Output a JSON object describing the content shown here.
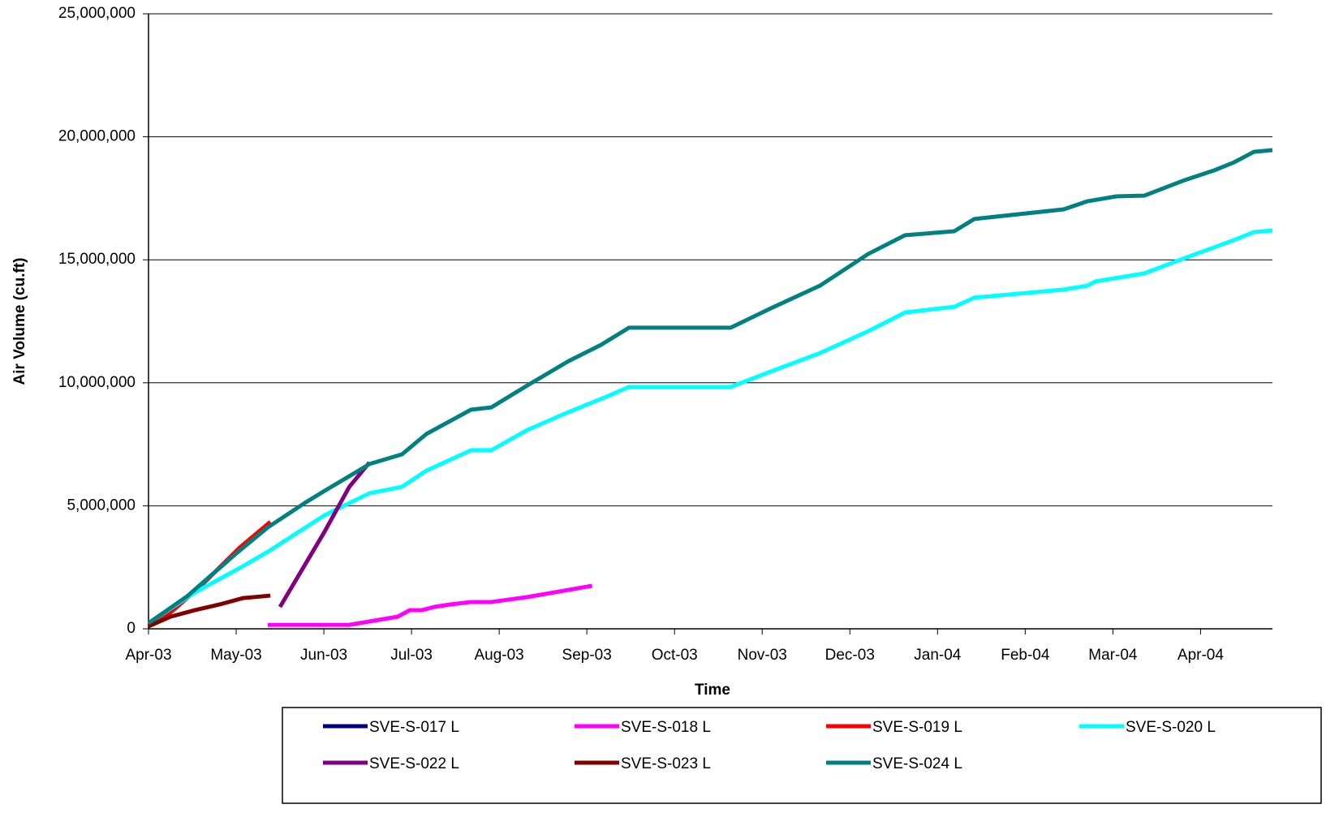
{
  "chart_data": {
    "type": "line",
    "y_label": "Air Volume (cu.ft)",
    "x_label": "Time",
    "xlim": [
      0,
      12.82
    ],
    "xticks": [
      {
        "value": 0,
        "label": "Apr-03"
      },
      {
        "value": 1,
        "label": "May-03"
      },
      {
        "value": 2,
        "label": "Jun-03"
      },
      {
        "value": 3,
        "label": "Jul-03"
      },
      {
        "value": 4,
        "label": "Aug-03"
      },
      {
        "value": 5,
        "label": "Sep-03"
      },
      {
        "value": 6,
        "label": "Oct-03"
      },
      {
        "value": 7,
        "label": "Nov-03"
      },
      {
        "value": 8,
        "label": "Dec-03"
      },
      {
        "value": 9,
        "label": "Jan-04"
      },
      {
        "value": 10,
        "label": "Feb-04"
      },
      {
        "value": 11,
        "label": "Mar-04"
      },
      {
        "value": 12,
        "label": "Apr-04"
      }
    ],
    "ylim": [
      0,
      25000000
    ],
    "yticks": [
      0,
      {
        "value": 5000000,
        "label": "5,000,000"
      },
      {
        "value": 10000000,
        "label": "10,000,000"
      },
      {
        "value": 15000000,
        "label": "15,000,000"
      },
      {
        "value": 20000000,
        "label": "20,000,000"
      },
      {
        "value": 25000000,
        "label": "25,000,000"
      }
    ],
    "grid": true,
    "legend": "bottom",
    "series": [
      {
        "name": "SVE-S-017 L",
        "color": "#000080",
        "x": [],
        "values": []
      },
      {
        "name": "SVE-S-018 L",
        "color": "#ff00ff",
        "x": [
          1.36,
          2.29,
          2.52,
          2.84,
          2.98,
          3.12,
          3.26,
          3.44,
          3.68,
          3.91,
          4.32,
          4.79,
          5.06
        ],
        "values": [
          160000,
          160000,
          300000,
          490000,
          760000,
          760000,
          890000,
          990000,
          1090000,
          1090000,
          1290000,
          1580000,
          1750000
        ]
      },
      {
        "name": "SVE-S-019 L",
        "color": "#ff0000",
        "x": [
          0,
          0.25,
          0.57,
          1.04,
          1.39
        ],
        "values": [
          160000,
          660000,
          1650000,
          3300000,
          4350000
        ]
      },
      {
        "name": "SVE-S-020 L",
        "color": "#00ffff",
        "x": [
          0,
          0.53,
          1.04,
          1.36,
          2.01,
          2.52,
          2.89,
          3.17,
          3.68,
          3.91,
          4.32,
          4.79,
          5.2,
          5.48,
          6.64,
          7.1,
          7.66,
          8.21,
          8.63,
          9.19,
          9.42,
          10.44,
          10.71,
          10.8,
          11.36,
          11.82,
          12.15,
          12.38,
          12.61,
          12.82
        ],
        "values": [
          230000,
          1480000,
          2470000,
          3130000,
          4620000,
          5510000,
          5770000,
          6430000,
          7260000,
          7260000,
          8080000,
          8810000,
          9400000,
          9830000,
          9830000,
          10460000,
          11210000,
          12100000,
          12860000,
          13090000,
          13460000,
          13790000,
          13950000,
          14120000,
          14450000,
          15070000,
          15500000,
          15800000,
          16130000,
          16190000
        ]
      },
      {
        "name": "SVE-S-022 L",
        "color": "#800080",
        "x": [
          1.5,
          2.01,
          2.29,
          2.52
        ],
        "values": [
          890000,
          3960000,
          5770000,
          6760000
        ]
      },
      {
        "name": "SVE-S-023 L",
        "color": "#800000",
        "x": [
          0,
          0.25,
          0.53,
          0.81,
          1.08,
          1.39
        ],
        "values": [
          100000,
          490000,
          760000,
          990000,
          1250000,
          1350000
        ]
      },
      {
        "name": "SVE-S-024 L",
        "color": "#008080",
        "x": [
          0,
          0.44,
          0.99,
          1.36,
          1.78,
          2.01,
          2.43,
          2.52,
          2.89,
          3.17,
          3.68,
          3.91,
          4.32,
          4.79,
          5.16,
          5.48,
          6.64,
          7.1,
          7.66,
          8.21,
          8.63,
          9.19,
          9.42,
          10.44,
          10.71,
          11.04,
          11.36,
          11.82,
          12.15,
          12.38,
          12.61,
          12.82
        ],
        "values": [
          230000,
          1320000,
          3030000,
          4120000,
          5110000,
          5610000,
          6500000,
          6700000,
          7090000,
          7920000,
          8910000,
          9000000,
          9890000,
          10880000,
          11540000,
          12240000,
          12240000,
          13030000,
          13950000,
          15240000,
          16000000,
          16160000,
          16660000,
          17050000,
          17380000,
          17580000,
          17610000,
          18240000,
          18630000,
          18960000,
          19390000,
          19460000
        ]
      }
    ]
  }
}
